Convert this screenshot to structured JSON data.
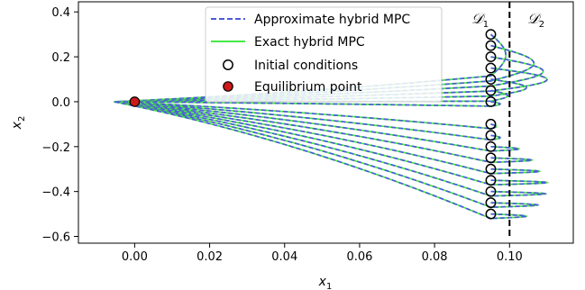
{
  "chart_data": {
    "type": "line",
    "xlabel": "x",
    "xlabel_sub": "1",
    "ylabel": "x",
    "ylabel_sub": "2",
    "xlim": [
      -0.015,
      0.117
    ],
    "ylim": [
      -0.63,
      0.445
    ],
    "xticks": [
      0.0,
      0.02,
      0.04,
      0.06,
      0.08,
      0.1
    ],
    "xtick_labels": [
      "0.00",
      "0.02",
      "0.04",
      "0.06",
      "0.08",
      "0.10"
    ],
    "yticks": [
      0.4,
      0.2,
      0.0,
      -0.2,
      -0.4,
      -0.6
    ],
    "ytick_labels": [
      "0.4",
      "0.2",
      "0.0",
      "−0.2",
      "−0.4",
      "−0.6"
    ],
    "grid": false,
    "legend_position": "upper center",
    "region_boundary_x": 0.1,
    "region_labels": [
      {
        "symbol": "𝒟",
        "sub": "1"
      },
      {
        "symbol": "𝒟",
        "sub": "2"
      }
    ],
    "series": [
      {
        "name": "Approximate hybrid MPC",
        "style": "dashed",
        "color": "#4d5bd8"
      },
      {
        "name": "Exact hybrid MPC",
        "style": "solid",
        "color": "#45e845"
      },
      {
        "name": "Initial conditions",
        "style": "marker-open-circle",
        "color": "#000000"
      },
      {
        "name": "Equilibrium point",
        "style": "marker-filled-circle",
        "color": "#cc1a1a"
      }
    ],
    "initial_conditions": {
      "x": 0.095,
      "y": [
        0.3,
        0.25,
        0.2,
        0.15,
        0.1,
        0.05,
        0.0,
        -0.1,
        -0.15,
        -0.2,
        -0.25,
        -0.3,
        -0.35,
        -0.4,
        -0.45,
        -0.5
      ]
    },
    "equilibrium_point": {
      "x": 0.0,
      "y": 0.0
    },
    "trajectory_xmax": [
      0.099,
      0.1065,
      0.109,
      0.11,
      0.1045,
      0.0995,
      0.0975,
      0.0965,
      0.0975,
      0.1025,
      0.106,
      0.108,
      0.11,
      0.1095,
      0.1075,
      0.1045
    ],
    "trajectory_min_x": -0.0055
  }
}
